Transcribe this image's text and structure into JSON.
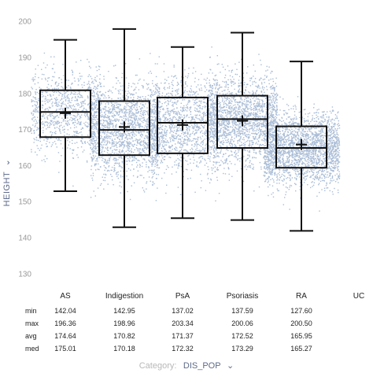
{
  "chart_data": {
    "type": "boxplot",
    "ylabel": "HEIGHT",
    "ylabel_chevron": "⌄",
    "ylim": [
      127,
      203
    ],
    "yticks": [
      130,
      140,
      150,
      160,
      170,
      180,
      190,
      200
    ],
    "grid": false,
    "categories": [
      "AS",
      "Indigestion",
      "PsA",
      "Psoriasis",
      "RA",
      "UC"
    ],
    "boxes": [
      {
        "category": "AS",
        "q1": 168,
        "median": 175,
        "q3": 181,
        "whisker_low": 153,
        "whisker_high": 195,
        "mean": 174.64
      },
      {
        "category": "Indigestion",
        "q1": 163,
        "median": 170,
        "q3": 178,
        "whisker_low": 143,
        "whisker_high": 198,
        "mean": 170.82
      },
      {
        "category": "PsA",
        "q1": 163.5,
        "median": 172,
        "q3": 179,
        "whisker_low": 145.5,
        "whisker_high": 193,
        "mean": 171.37
      },
      {
        "category": "Psoriasis",
        "q1": 165,
        "median": 173,
        "q3": 179.5,
        "whisker_low": 145,
        "whisker_high": 197,
        "mean": 172.52
      },
      {
        "category": "RA",
        "q1": 159.5,
        "median": 165,
        "q3": 171,
        "whisker_low": 142,
        "whisker_high": 189,
        "mean": 165.95
      }
    ],
    "points_color": "#a9bcd6",
    "box_color": "#111111"
  },
  "stats_table": {
    "row_labels": [
      "min",
      "max",
      "avg",
      "med"
    ],
    "columns": [
      {
        "category": "AS",
        "values": [
          "142.04",
          "196.36",
          "174.64",
          "175.01"
        ]
      },
      {
        "category": "Indigestion",
        "values": [
          "142.95",
          "198.96",
          "170.82",
          "170.18"
        ]
      },
      {
        "category": "PsA",
        "values": [
          "137.02",
          "203.34",
          "171.37",
          "172.32"
        ]
      },
      {
        "category": "Psoriasis",
        "values": [
          "137.59",
          "200.06",
          "172.52",
          "173.29"
        ]
      },
      {
        "category": "RA",
        "values": [
          "127.60",
          "200.50",
          "165.95",
          "165.27"
        ]
      }
    ]
  },
  "footer": {
    "label": "Category:",
    "value": "DIS_POP",
    "chevron": "⌄"
  }
}
